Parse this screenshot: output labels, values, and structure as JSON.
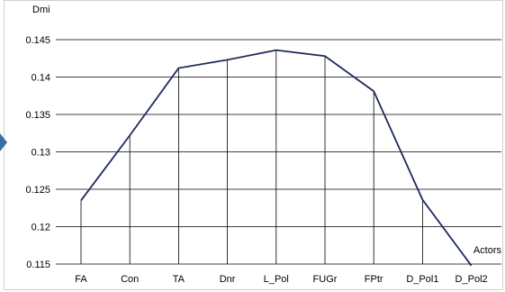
{
  "chart_data": {
    "type": "line",
    "title": "",
    "ylabel": "Dmi",
    "xlabel": "Actors",
    "categories": [
      "FA",
      "Con",
      "TA",
      "Dnr",
      "L_Pol",
      "FUGr",
      "FPtr",
      "D_Pol1",
      "D_Pol2"
    ],
    "series": [
      {
        "values": [
          0.1235,
          0.1322,
          0.1412,
          0.1423,
          0.1436,
          0.1428,
          0.1381,
          0.1236,
          0.1148
        ]
      }
    ],
    "ylim": [
      0.115,
      0.145
    ],
    "yticks": [
      "0.115",
      "0.12",
      "0.125",
      "0.13",
      "0.135",
      "0.14",
      "0.145"
    ],
    "grid": "horizontal",
    "drop_lines": true,
    "colors": {
      "line": "#1f2a5a",
      "grid": "#000000",
      "drop_line": "#000000"
    }
  }
}
